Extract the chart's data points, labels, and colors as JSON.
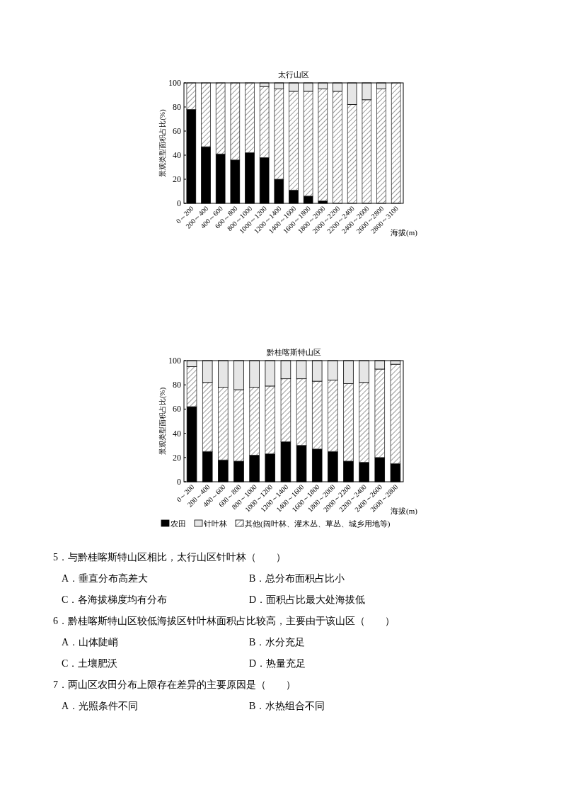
{
  "chart_data": [
    {
      "type": "bar",
      "title": "太行山区",
      "ylabel": "景观类型面积占比(%)",
      "xlabel": "海拔(m)",
      "stacked": true,
      "ylim": [
        0,
        100
      ],
      "yticks": [
        0,
        20,
        40,
        60,
        80,
        100
      ],
      "grid": false,
      "legend": false,
      "categories": [
        "0～200",
        "200～400",
        "400～600",
        "600～800",
        "800～1000",
        "1000～1200",
        "1200～1400",
        "1400～1600",
        "1600～1800",
        "1800～2000",
        "2000～2200",
        "2200～2400",
        "2400～2600",
        "2600～2800",
        "2800～3100"
      ],
      "series": [
        {
          "color": "#000000",
          "values": [
            78,
            47,
            41,
            36,
            42,
            38,
            20,
            11,
            6,
            2,
            0,
            0,
            0,
            0,
            0
          ]
        },
        {
          "color": "#333333",
          "values": [
            22,
            53,
            59,
            64,
            58,
            59,
            75,
            82,
            87,
            93,
            93,
            82,
            86,
            95,
            100
          ]
        },
        {
          "color": "#e6e6e6",
          "values": [
            0,
            0,
            0,
            0,
            0,
            3,
            5,
            7,
            7,
            5,
            7,
            18,
            14,
            5,
            0
          ]
        }
      ]
    },
    {
      "type": "bar",
      "title": "黔桂喀斯特山区",
      "ylabel": "景观类型面积占比(%)",
      "xlabel": "海拔(m)",
      "stacked": true,
      "ylim": [
        0,
        100
      ],
      "yticks": [
        0,
        20,
        40,
        60,
        80,
        100
      ],
      "grid": false,
      "legend": "bottom",
      "categories": [
        "0～200",
        "200～400",
        "400～600",
        "600～800",
        "800～1000",
        "1000～1200",
        "1200～1400",
        "1400～1600",
        "1600～1800",
        "1800～2000",
        "2000～2200",
        "2200～2400",
        "2400～2600",
        "2600～2800"
      ],
      "series": [
        {
          "name": "农田",
          "color": "#000000",
          "values": [
            62,
            25,
            18,
            17,
            22,
            23,
            33,
            30,
            27,
            25,
            17,
            16,
            20,
            15
          ]
        },
        {
          "name": "其他(阔叶林、灌木丛、草丛、城乡用地等)",
          "color": "#333333",
          "values": [
            33,
            57,
            60,
            59,
            56,
            56,
            52,
            55,
            56,
            59,
            64,
            66,
            73,
            82
          ]
        },
        {
          "name": "针叶林",
          "color": "#e6e6e6",
          "values": [
            5,
            18,
            22,
            24,
            22,
            21,
            15,
            15,
            17,
            16,
            19,
            18,
            7,
            3
          ]
        }
      ],
      "annotations": [
        "5．与黔桂喀斯特山区相比，太行山区针叶林（　　）",
        "A．垂直分布高差大",
        "B．总分布面积占比小",
        "C．各海拔梯度均有分布",
        "D．面积占比最大处海拔低",
        "6．黔桂喀斯特山区较低海拔区针叶林面积占比较高，主要由于该山区（　　）",
        "A．山体陡峭",
        "B．水分充足",
        "C．土壤肥沃",
        "D．热量充足",
        "7．两山区农田分布上限存在差异的主要原因是（　　）",
        "A．光照条件不同",
        "B．水热组合不同"
      ]
    }
  ]
}
